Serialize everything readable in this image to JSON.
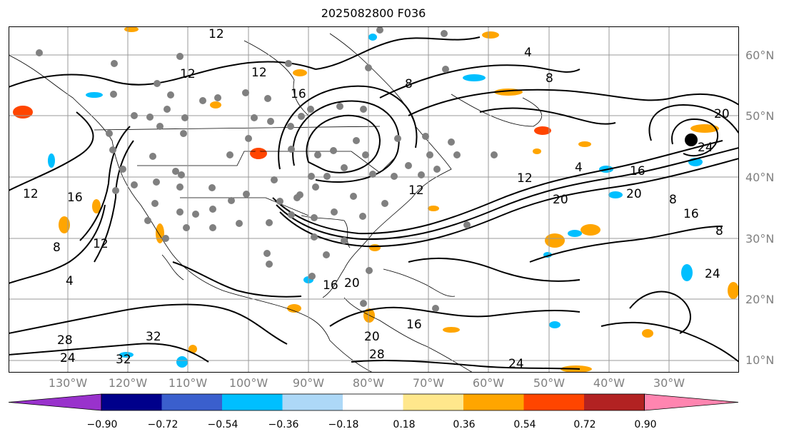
{
  "title": "2025082800 F036",
  "latitude_labels": [
    "60°N",
    "50°N",
    "40°N",
    "30°N",
    "20°N",
    "10°N"
  ],
  "longitude_labels": [
    "130°W",
    "120°W",
    "110°W",
    "100°W",
    "90°W",
    "80°W",
    "70°W",
    "60°W",
    "50°W",
    "40°W",
    "30°W"
  ],
  "contour_labels": [
    "12",
    "12",
    "12",
    "12",
    "12",
    "12",
    "12",
    "8",
    "8",
    "8",
    "8",
    "8",
    "4",
    "4",
    "4",
    "16",
    "16",
    "16",
    "16",
    "16",
    "16",
    "20",
    "20",
    "20",
    "20",
    "20",
    "24",
    "24",
    "24",
    "24",
    "28",
    "28",
    "32",
    "32"
  ],
  "colorbar": {
    "ticks": [
      "−0.90",
      "−0.72",
      "−0.54",
      "−0.36",
      "−0.18",
      "0.18",
      "0.36",
      "0.54",
      "0.72",
      "0.90"
    ],
    "colors": [
      "#9932cc",
      "#00008b",
      "#3a5fcd",
      "#00bfff",
      "#add8f7",
      "#ffffff",
      "#ffe78c",
      "#ffa500",
      "#ff4500",
      "#b22222",
      "#ff85b0"
    ]
  }
}
